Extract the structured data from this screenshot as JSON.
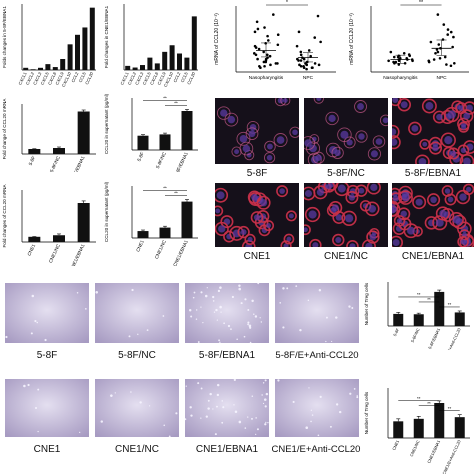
{
  "figure": {
    "fluor_labels": [
      "5-8F",
      "5-8F/NC",
      "5-8F/EBNA1",
      "CNE1",
      "CNE1/NC",
      "CNE1/EBNA1"
    ],
    "migration_labels_row1": [
      "5-8F",
      "5-8F/NC",
      "5-8F/EBNA1",
      "5-8F/E+Anti-CCL20"
    ],
    "migration_labels_row2": [
      "CNE1",
      "CNE1/NC",
      "CNE1/EBNA1",
      "CNE1/E+Anti-CCL20"
    ],
    "colors": {
      "bar": "#111111",
      "fluor_bg": "#15101a",
      "cell": "#c8304a",
      "membrane": "#c95a8c",
      "nucleus": "#5a3aa0",
      "migration_bg": "#cfc8de"
    }
  },
  "chart_data": [
    {
      "type": "bar",
      "ylabel": "Folds changes in 5-8F/EBNA1",
      "categories": [
        "CXCL1",
        "CXCL2",
        "CXCL3",
        "CXCL5",
        "CXCL8",
        "CXCL9",
        "CXCL10",
        "CCL2",
        "CCL5",
        "CCL20"
      ],
      "values": [
        0.3,
        0.1,
        0.3,
        0.8,
        0.4,
        1.5,
        3.5,
        4.8,
        5.8,
        8.5
      ],
      "ylim": [
        0,
        9
      ]
    },
    {
      "type": "bar",
      "ylabel": "Fold changes in CNE1/EBNA1",
      "categories": [
        "CXCL1",
        "CXCL2",
        "CXCL3",
        "CXCL5",
        "CXCL8",
        "CXCL9",
        "CXCL10",
        "CCL2",
        "CCL5",
        "CCL20"
      ],
      "values": [
        0.5,
        0.3,
        0.6,
        1.5,
        0.8,
        2.2,
        3.0,
        2.0,
        1.5,
        6.5
      ],
      "ylim": [
        0,
        8
      ]
    },
    {
      "type": "scatter",
      "ylabel": "mRNA of CCL20 (10⁻³)",
      "categories": [
        "Nasopharyngitis",
        "NPC"
      ],
      "values": [
        [
          0.7,
          2.5,
          1.2,
          0.4,
          3.1,
          0.9,
          1.8,
          0.6,
          2.2,
          1.4,
          0.3,
          4.0,
          1.1,
          2.8,
          0.8,
          1.6,
          0.5,
          3.5,
          1.0,
          2.0,
          0.9,
          1.3,
          0.6,
          2.6,
          1.7,
          0.4,
          1.9,
          3.0,
          0.7,
          1.2
        ],
        [
          0.3,
          1.0,
          0.5,
          2.1,
          0.2,
          0.8,
          1.5,
          0.4,
          2.8,
          0.6,
          0.9,
          0.3,
          1.8,
          0.5,
          1.2,
          3.9,
          0.7,
          0.4,
          1.1,
          0.6,
          2.4,
          0.3,
          0.8,
          1.4,
          0.5,
          0.9
        ]
      ],
      "means": [
        1.5,
        1.0
      ],
      "significance": "*"
    },
    {
      "type": "scatter",
      "ylabel": "mRNA of CCL20 (10⁻³)",
      "categories": [
        "Nasopharyngitis",
        "NPC"
      ],
      "values": [
        [
          0.9,
          1.2,
          0.7,
          1.5,
          1.0,
          0.8,
          1.3,
          1.1,
          0.6,
          1.4,
          0.9,
          1.0,
          1.2,
          0.8,
          1.1,
          1.6,
          0.7,
          1.0,
          1.3,
          0.9
        ],
        [
          2.0,
          0.5,
          3.4,
          1.2,
          2.6,
          0.8,
          1.8,
          4.6,
          1.0,
          2.2,
          0.6,
          3.0,
          1.5,
          2.8,
          0.9,
          1.6,
          3.8,
          1.1,
          2.4,
          0.7,
          1.9,
          3.2
        ]
      ],
      "means": [
        1.0,
        1.9
      ],
      "significance": "**"
    },
    {
      "type": "bar",
      "ylabel": "Fold change of CCL20 mRNA",
      "categories": [
        "5-8F",
        "5-8F/NC",
        "5-8F/EBNA1"
      ],
      "values": [
        1.0,
        1.2,
        8.5
      ],
      "errors": [
        0.05,
        0.2,
        0.3
      ],
      "ylim": [
        0,
        10
      ]
    },
    {
      "type": "bar",
      "ylabel": "CCL20 in supernatant (pg/ml)",
      "categories": [
        "5-8F",
        "5-8F/NC",
        "5-8F/EBNA1"
      ],
      "values": [
        110,
        120,
        300
      ],
      "errors": [
        8,
        10,
        12
      ],
      "ylim": [
        0,
        400
      ],
      "significance": [
        "**",
        "**"
      ]
    },
    {
      "type": "bar",
      "ylabel": "Fold changes of CCL20 mRNA",
      "categories": [
        "CNE1",
        "CNE1/NC",
        "CNE1/EBNA1"
      ],
      "values": [
        1.0,
        1.3,
        7.5
      ],
      "errors": [
        0.05,
        0.25,
        0.4
      ],
      "ylim": [
        0,
        10
      ]
    },
    {
      "type": "bar",
      "ylabel": "CCL20 in supernatant (pg/ml)",
      "categories": [
        "CNE1",
        "CNE1/NC",
        "CNE1/EBNA1"
      ],
      "values": [
        20,
        30,
        105
      ],
      "errors": [
        3,
        4,
        6
      ],
      "ylim": [
        0,
        150
      ],
      "significance": [
        "**",
        "**"
      ]
    },
    {
      "type": "bar",
      "ylabel": "Number of Treg cells",
      "categories": [
        "5-8F",
        "5-8F/NC",
        "5-8F/EBNA1",
        "5-8F/E+Anti-CCL20"
      ],
      "values": [
        330,
        320,
        930,
        370
      ],
      "errors": [
        40,
        30,
        50,
        40
      ],
      "ylim": [
        0,
        1200
      ],
      "significance": [
        "**",
        "**",
        "**"
      ]
    },
    {
      "type": "bar",
      "ylabel": "Number of Treg cells",
      "categories": [
        "CNE1",
        "CNE1/NC",
        "CNE1/EBNA1",
        "CNE1/E+Anti-CCL20"
      ],
      "values": [
        200,
        230,
        420,
        250
      ],
      "errors": [
        30,
        30,
        25,
        30
      ],
      "ylim": [
        0,
        600
      ],
      "significance": [
        "**",
        "**",
        "**"
      ]
    }
  ]
}
